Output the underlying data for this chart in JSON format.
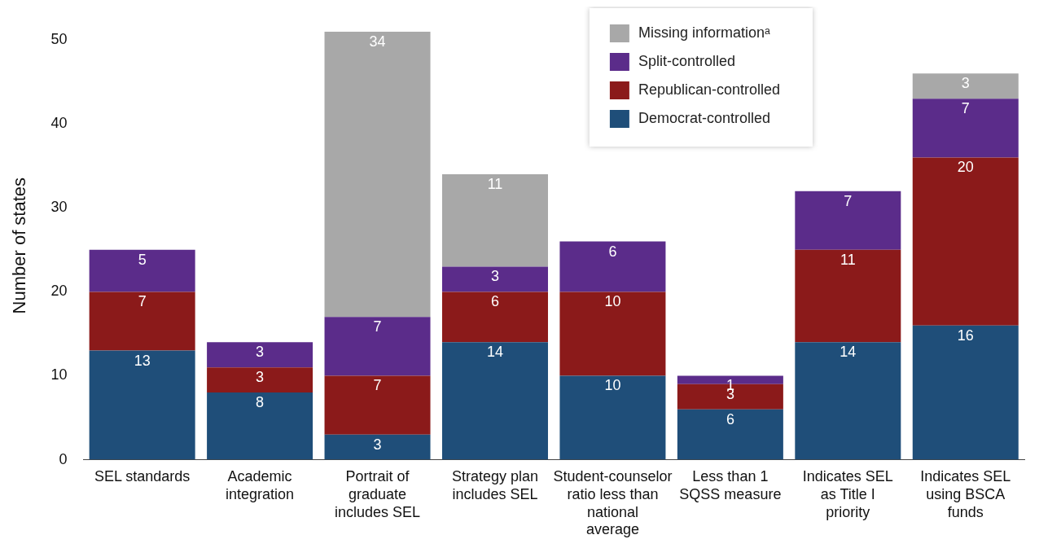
{
  "chart_data": {
    "type": "bar",
    "stacked": true,
    "ylabel": "Number of states",
    "categories": [
      "SEL standards",
      "Academic integration",
      "Portrait of graduate includes SEL",
      "Strategy plan includes SEL",
      "Student-counselor ratio less than national average",
      "Less than 1 SQSS measure",
      "Indicates SEL as Title I priority",
      "Indicates SEL using BSCA funds"
    ],
    "series": [
      {
        "name": "Democrat-controlled",
        "color": "#1f4e79",
        "values": [
          13,
          8,
          3,
          14,
          10,
          6,
          14,
          16
        ]
      },
      {
        "name": "Republican-controlled",
        "color": "#8b1a1a",
        "values": [
          7,
          3,
          7,
          6,
          10,
          3,
          11,
          20
        ]
      },
      {
        "name": "Split-controlled",
        "color": "#5b2c8a",
        "values": [
          5,
          3,
          7,
          3,
          6,
          1,
          7,
          7
        ]
      },
      {
        "name": "Missing informationᵃ",
        "color": "#a8a8a8",
        "values": [
          null,
          null,
          34,
          11,
          null,
          null,
          null,
          3
        ]
      }
    ],
    "ylim": [
      0,
      51
    ],
    "yticks": [
      0,
      10,
      20,
      30,
      40,
      50
    ],
    "grid": false,
    "legend": "top right",
    "data_labels": true
  }
}
